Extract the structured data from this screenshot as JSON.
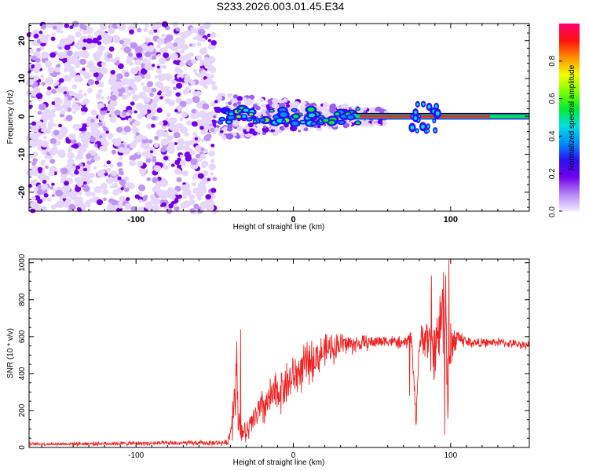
{
  "title": "S233.2026.003.01.45.E34",
  "chart_data": [
    {
      "type": "heatmap",
      "xlabel": "Height of straight line (km)",
      "ylabel": "Frequency (Hz)",
      "xlim": [
        -168,
        150
      ],
      "ylim": [
        -25,
        24.5
      ],
      "xticks": [
        -100,
        0,
        100
      ],
      "xtick_labels": [
        "-100",
        "0",
        "100"
      ],
      "yticks": [
        -20,
        -10,
        0,
        10,
        20
      ],
      "ytick_labels": [
        "-20",
        "-10",
        "0",
        "10",
        "20"
      ],
      "colorbar": {
        "label": "Normalized spectral amplitude",
        "range": [
          0,
          1
        ],
        "ticks": [
          0,
          0.2,
          0.4,
          0.6,
          0.8
        ],
        "tick_labels": [
          "0.0",
          "0.2",
          "0.4",
          "0.6",
          "0.8"
        ],
        "colors": [
          "#f4eaff",
          "#b485f5",
          "#7300ee",
          "#2b10f5",
          "#0090ff",
          "#00e0e0",
          "#00ee30",
          "#7dff00",
          "#f0ff00",
          "#ff9000",
          "#ff1010",
          "#ff0070"
        ]
      },
      "features": {
        "noise_region_x": [
          -168,
          -50
        ],
        "transition_x": [
          -50,
          40
        ],
        "carrier_frequency": 0,
        "strong_carrier_x": [
          40,
          150
        ],
        "burst_x": [
          75,
          93
        ]
      }
    },
    {
      "type": "line",
      "xlabel": "Height of straight line (km)",
      "ylabel": "SNR (10 * v/v)",
      "xlim": [
        -168,
        150
      ],
      "ylim": [
        0,
        1020
      ],
      "xticks": [
        -100,
        0,
        100
      ],
      "xtick_labels": [
        "-100",
        "0",
        "100"
      ],
      "yticks": [
        0,
        200,
        400,
        600,
        800,
        1000
      ],
      "ytick_labels": [
        "0",
        "200",
        "400",
        "600",
        "800",
        "1000"
      ],
      "series": [
        {
          "name": "SNR",
          "color": "#ee2222",
          "x": [
            -168,
            -100,
            -60,
            -42,
            -40,
            -38,
            -36,
            -35,
            -33,
            -30,
            -25,
            -20,
            -10,
            0,
            10,
            20,
            30,
            40,
            50,
            60,
            70,
            75,
            78,
            80,
            85,
            88,
            92,
            95,
            97,
            98,
            100,
            105,
            110,
            120,
            130,
            140,
            150
          ],
          "y": [
            18,
            22,
            24,
            25,
            80,
            240,
            420,
            160,
            90,
            70,
            150,
            210,
            300,
            380,
            460,
            520,
            560,
            560,
            570,
            580,
            560,
            600,
            150,
            560,
            610,
            520,
            600,
            760,
            820,
            250,
            560,
            600,
            570,
            565,
            570,
            560,
            555
          ],
          "spread": [
            10,
            14,
            16,
            18,
            60,
            200,
            220,
            120,
            80,
            70,
            110,
            130,
            150,
            150,
            140,
            110,
            90,
            60,
            45,
            40,
            40,
            60,
            60,
            80,
            150,
            200,
            250,
            300,
            320,
            300,
            150,
            60,
            40,
            30,
            28,
            28,
            28
          ],
          "peaks": [
            {
              "x": -33.5,
              "y": 640
            },
            {
              "x": 87.8,
              "y": 930
            },
            {
              "x": 95.5,
              "y": 950
            },
            {
              "x": 99.0,
              "y": 1020
            },
            {
              "x": 96.2,
              "y": 70
            },
            {
              "x": 74.0,
              "y": 280
            }
          ]
        }
      ]
    }
  ]
}
